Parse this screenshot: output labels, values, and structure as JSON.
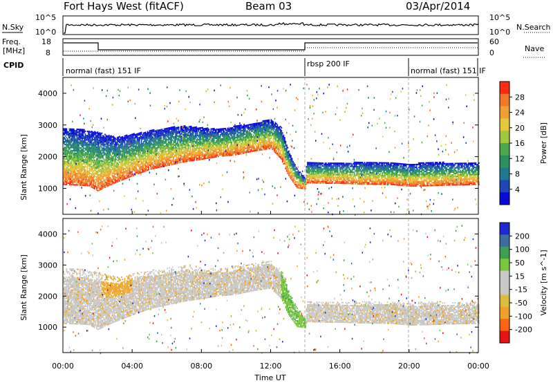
{
  "header": {
    "site": "Fort Hays West (fitACF)",
    "beam": "Beam 03",
    "date": "03/Apr/2014"
  },
  "strips": {
    "nsky_label": "N.Sky",
    "nsky_ticks": [
      "10^5",
      "10^0"
    ],
    "nsearch_label": "N.Search",
    "nsearch_ticks": [
      "10^5",
      "10^0"
    ],
    "freq_label_line1": "Freq.",
    "freq_label_line2": "[MHz]",
    "freq_ticks": [
      "18",
      "8"
    ],
    "nave_label": "Nave",
    "nave_ticks": [
      "60",
      "0"
    ],
    "cpid_label": "CPID",
    "cpid_segments": [
      {
        "label": "normal (fast) 151 IF",
        "start_h": 0,
        "end_h": 14.0
      },
      {
        "label": "rbsp 200 IF",
        "start_h": 14.0,
        "end_h": 20.0
      },
      {
        "label": "normal (fast) 151 IF",
        "start_h": 20.0,
        "end_h": 24.0
      }
    ]
  },
  "chart_data": [
    {
      "type": "heatmap",
      "title": "Power",
      "xlabel": "Time UT",
      "ylabel": "Slant Range [km]",
      "x_ticks": [
        "00:00",
        "04:00",
        "08:00",
        "12:00",
        "16:00",
        "20:00",
        "00:00"
      ],
      "xlim_hours": [
        0,
        24
      ],
      "y_ticks": [
        "1000",
        "2000",
        "3000",
        "4000"
      ],
      "ylim": [
        180,
        4500
      ],
      "colorbar": {
        "label": "Power [dB]",
        "ticks": [
          "4",
          "8",
          "12",
          "16",
          "20",
          "24",
          "28"
        ],
        "range": [
          0,
          30
        ]
      },
      "lower_edge_km": [
        [
          0,
          1100
        ],
        [
          0.5,
          1090
        ],
        [
          1,
          1080
        ],
        [
          1.5,
          1060
        ],
        [
          2,
          900
        ],
        [
          2.5,
          1040
        ],
        [
          3,
          1160
        ],
        [
          4,
          1380
        ],
        [
          5,
          1580
        ],
        [
          6,
          1700
        ],
        [
          7,
          1820
        ],
        [
          8,
          1900
        ],
        [
          9,
          1990
        ],
        [
          10,
          2040
        ],
        [
          11,
          2160
        ],
        [
          12,
          2240
        ],
        [
          12.6,
          1900
        ],
        [
          13,
          1400
        ],
        [
          13.5,
          1000
        ],
        [
          14,
          960
        ],
        [
          14.05,
          1160
        ],
        [
          15,
          1140
        ],
        [
          16,
          1140
        ],
        [
          17,
          1120
        ],
        [
          18,
          1110
        ],
        [
          19,
          1100
        ],
        [
          20,
          1050
        ],
        [
          21,
          1060
        ],
        [
          22,
          1080
        ],
        [
          23,
          1090
        ],
        [
          24,
          1100
        ]
      ],
      "upper_edge_km": [
        [
          0,
          2900
        ],
        [
          1,
          2850
        ],
        [
          2,
          2750
        ],
        [
          3,
          2600
        ],
        [
          4,
          2700
        ],
        [
          5,
          2800
        ],
        [
          6,
          2900
        ],
        [
          7,
          2950
        ],
        [
          8,
          2900
        ],
        [
          9,
          2850
        ],
        [
          10,
          2950
        ],
        [
          11,
          3050
        ],
        [
          12,
          3150
        ],
        [
          12.6,
          2900
        ],
        [
          13,
          2200
        ],
        [
          13.5,
          1600
        ],
        [
          14,
          1300
        ],
        [
          14.05,
          1800
        ],
        [
          15,
          1800
        ],
        [
          16,
          1800
        ],
        [
          17,
          1800
        ],
        [
          18,
          1800
        ],
        [
          19,
          1800
        ],
        [
          20,
          1750
        ],
        [
          21,
          1800
        ],
        [
          22,
          1800
        ],
        [
          23,
          1800
        ],
        [
          24,
          1800
        ]
      ]
    },
    {
      "type": "heatmap",
      "title": "Velocity",
      "xlabel": "Time UT",
      "ylabel": "Slant Range [km]",
      "x_ticks": [
        "00:00",
        "04:00",
        "08:00",
        "12:00",
        "16:00",
        "20:00",
        "00:00"
      ],
      "xlim_hours": [
        0,
        24
      ],
      "y_ticks": [
        "1000",
        "2000",
        "3000",
        "4000"
      ],
      "ylim": [
        180,
        4500
      ],
      "colorbar": {
        "label": "Velocity [m s^-1]",
        "ticks": [
          "200",
          "100",
          "50",
          "15",
          "-15",
          "-50",
          "-100",
          "-200"
        ]
      }
    }
  ],
  "colors": {
    "power_scale": [
      "#0a0ad8",
      "#1e46b4",
      "#1e7890",
      "#2a9060",
      "#4ca84a",
      "#a0c83c",
      "#e6c83c",
      "#f0a032",
      "#f07828",
      "#ff2a14"
    ],
    "velocity_scale": [
      "#e61414",
      "#ff6414",
      "#f0a028",
      "#dcbc3c",
      "#c8c8c8",
      "#c8c8c8",
      "#78c83c",
      "#3ca050",
      "#3c6ea0",
      "#1e28d2"
    ],
    "ground_scatter": "#c8c8c8",
    "dashed_divider": "#aaaaaa"
  }
}
